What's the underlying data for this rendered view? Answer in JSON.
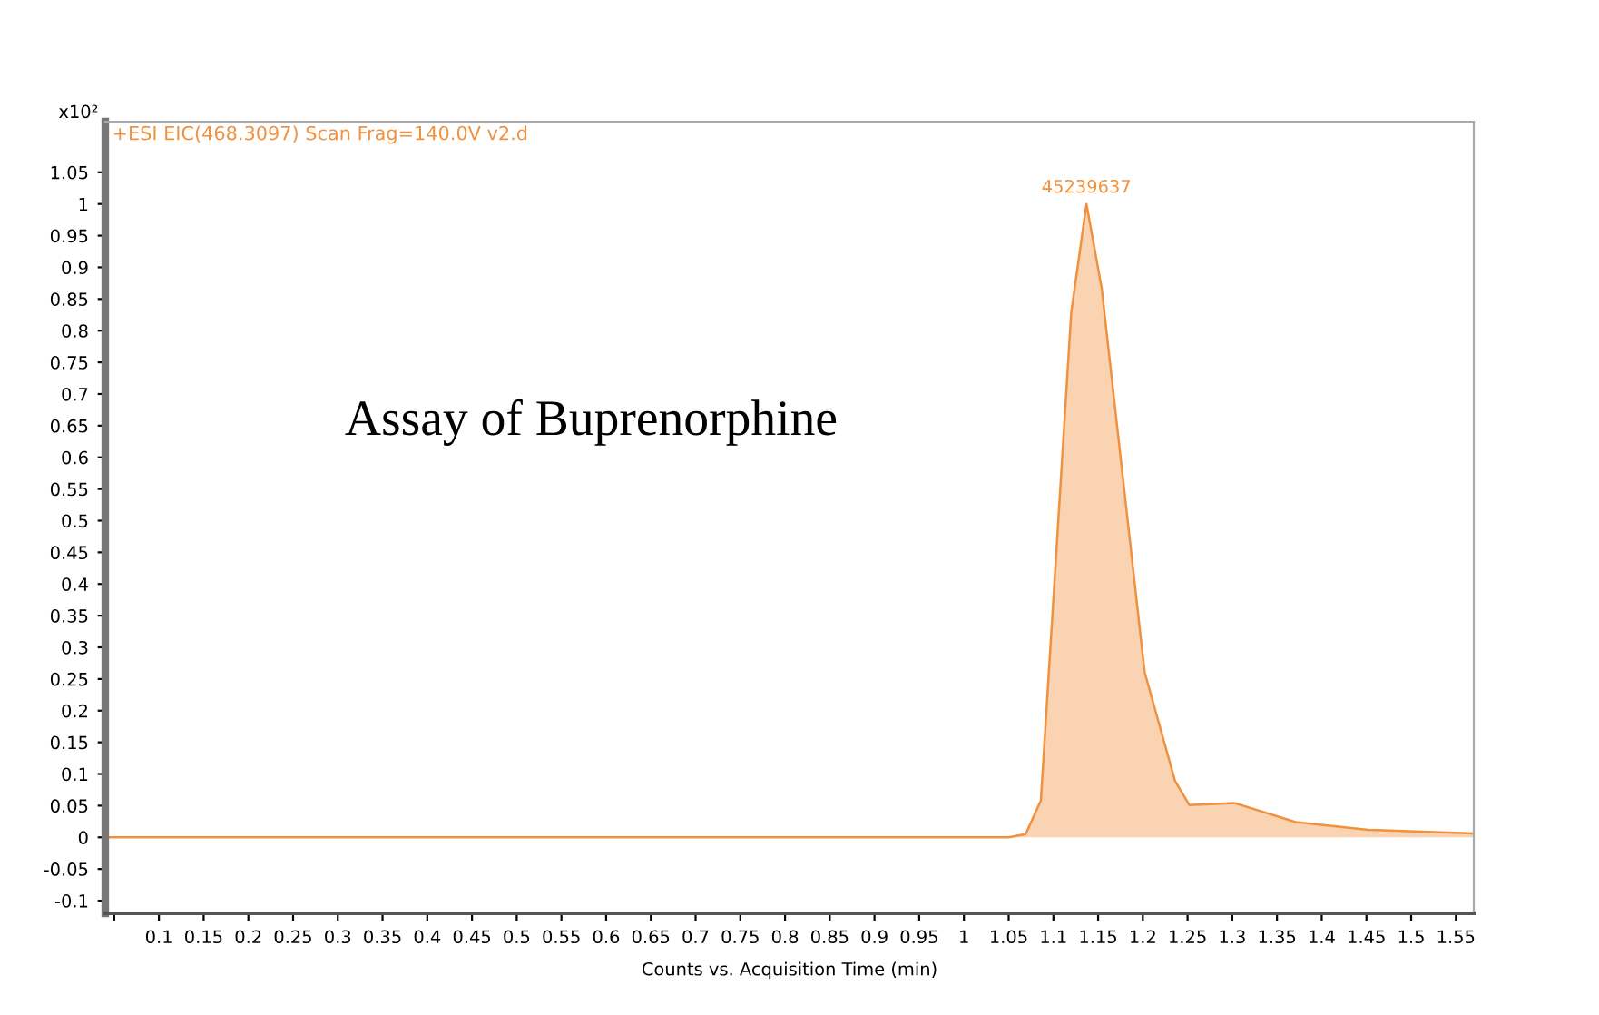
{
  "chart_data": {
    "type": "area",
    "title": "+ESI EIC(468.3097) Scan Frag=140.0V v2.d",
    "xlabel": "Counts vs. Acquisition Time (min)",
    "annotations": [
      "x10²",
      "Assay of Buprenorphine",
      {
        "text": "45239637",
        "x": 1.137,
        "y": 1
      }
    ],
    "x": [
      0.04,
      0.3,
      0.6,
      0.9,
      1.05,
      1.069,
      1.086,
      1.12,
      1.137,
      1.154,
      1.202,
      1.236,
      1.252,
      1.303,
      1.371,
      1.452,
      1.57
    ],
    "series": [
      {
        "color": "#f0913f",
        "values": [
          0,
          0,
          0,
          0,
          0,
          0.005,
          0.058,
          0.829,
          1,
          0.867,
          0.261,
          0.089,
          0.051,
          0.054,
          0.024,
          0.012,
          0.006
        ]
      }
    ],
    "xlim": [
      0.04,
      1.57
    ],
    "ylim": [
      -0.12,
      1.13
    ],
    "xticks": [
      {
        "value": 0.05,
        "label": null
      },
      0.1,
      0.15,
      0.2,
      0.25,
      0.3,
      0.35,
      0.4,
      0.45,
      0.5,
      0.55,
      0.6,
      0.65,
      0.7,
      0.75,
      0.8,
      0.85,
      0.9,
      0.95,
      1,
      1.05,
      1.1,
      1.15,
      1.2,
      1.25,
      1.3,
      1.35,
      1.4,
      1.45,
      1.5,
      1.55
    ],
    "yticks": [
      -0.1,
      -0.05,
      0,
      0.05,
      0.1,
      0.15,
      0.2,
      0.25,
      0.3,
      0.35,
      0.4,
      0.45,
      0.5,
      0.55,
      0.6,
      0.65,
      0.7,
      0.75,
      0.8,
      0.85,
      0.9,
      0.95,
      1,
      1.05
    ],
    "grid": false,
    "legend": false
  }
}
